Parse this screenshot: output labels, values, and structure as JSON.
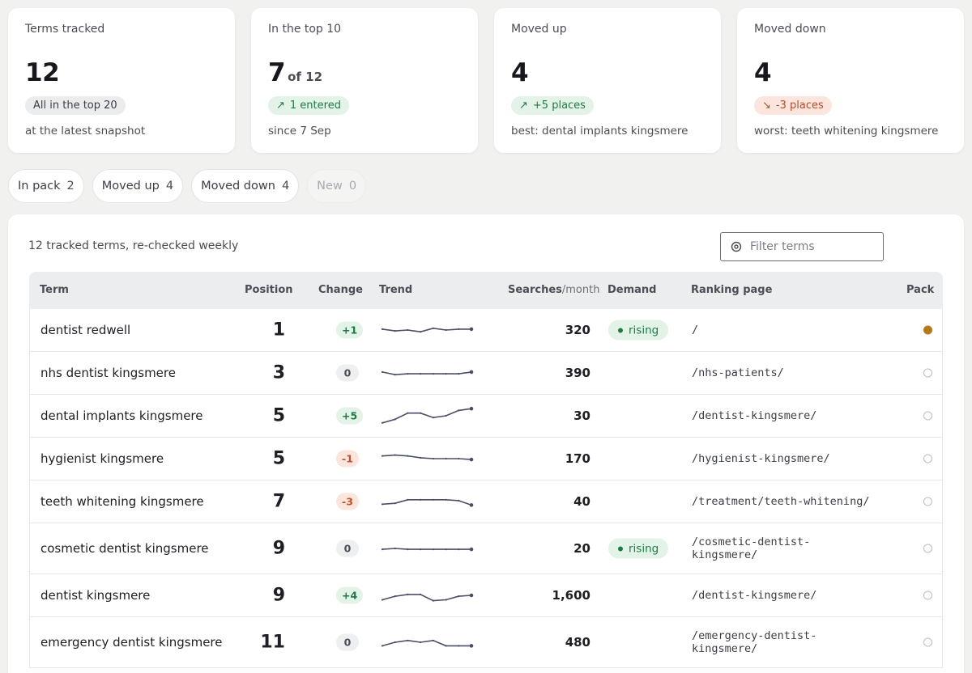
{
  "stats": [
    {
      "label": "Terms tracked",
      "value": "12",
      "suffix": "",
      "badge": "All in the top 20",
      "badge_kind": "neutral",
      "badge_arrow": "",
      "note": "at the latest snapshot"
    },
    {
      "label": "In the top 10",
      "value": "7",
      "suffix": "of 12",
      "badge": "1 entered",
      "badge_kind": "up",
      "badge_arrow": "↗",
      "note": "since 7 Sep"
    },
    {
      "label": "Moved up",
      "value": "4",
      "suffix": "",
      "badge": "+5 places",
      "badge_kind": "up",
      "badge_arrow": "↗",
      "note": "best: dental implants kingsmere"
    },
    {
      "label": "Moved down",
      "value": "4",
      "suffix": "",
      "badge": "-3 places",
      "badge_kind": "down",
      "badge_arrow": "↘",
      "note": "worst: teeth whitening kingsmere"
    }
  ],
  "chips": [
    {
      "label": "In pack",
      "count": "2",
      "disabled": false
    },
    {
      "label": "Moved up",
      "count": "4",
      "disabled": false
    },
    {
      "label": "Moved down",
      "count": "4",
      "disabled": false
    },
    {
      "label": "New",
      "count": "0",
      "disabled": true
    }
  ],
  "panel": {
    "caption": "12 tracked terms, re-checked weekly",
    "filter_placeholder": "Filter terms"
  },
  "columns": {
    "term": "Term",
    "position": "Position",
    "change": "Change",
    "trend": "Trend",
    "searches": "Searches",
    "searches_unit": "/month",
    "demand": "Demand",
    "page": "Ranking page",
    "pack": "Pack"
  },
  "rows": [
    {
      "term": "dentist redwell",
      "position": "1",
      "change": "+1",
      "change_kind": "up",
      "trend": [
        0.45,
        0.55,
        0.5,
        0.6,
        0.4,
        0.5,
        0.45,
        0.45
      ],
      "searches": "320",
      "demand": "rising",
      "page": "/",
      "pack": true
    },
    {
      "term": "nhs dentist kingsmere",
      "position": "3",
      "change": "0",
      "change_kind": "zero",
      "trend": [
        0.45,
        0.6,
        0.55,
        0.55,
        0.55,
        0.55,
        0.55,
        0.45
      ],
      "searches": "390",
      "demand": "",
      "page": "/nhs-patients/",
      "pack": false
    },
    {
      "term": "dental implants kingsmere",
      "position": "5",
      "change": "+5",
      "change_kind": "up",
      "trend": [
        0.9,
        0.7,
        0.35,
        0.35,
        0.6,
        0.5,
        0.2,
        0.1
      ],
      "searches": "30",
      "demand": "",
      "page": "/dentist-kingsmere/",
      "pack": false
    },
    {
      "term": "hygienist kingsmere",
      "position": "5",
      "change": "-1",
      "change_kind": "down",
      "trend": [
        0.35,
        0.3,
        0.35,
        0.45,
        0.5,
        0.5,
        0.5,
        0.55
      ],
      "searches": "170",
      "demand": "",
      "page": "/hygienist-kingsmere/",
      "pack": false
    },
    {
      "term": "teeth whitening kingsmere",
      "position": "7",
      "change": "-3",
      "change_kind": "down",
      "trend": [
        0.65,
        0.6,
        0.4,
        0.4,
        0.4,
        0.4,
        0.45,
        0.7
      ],
      "searches": "40",
      "demand": "",
      "page": "/treatment/teeth-whitening/",
      "pack": false
    },
    {
      "term": "cosmetic dentist kingsmere",
      "position": "9",
      "change": "0",
      "change_kind": "zero",
      "trend": [
        0.55,
        0.5,
        0.55,
        0.55,
        0.55,
        0.55,
        0.55,
        0.55
      ],
      "searches": "20",
      "demand": "rising",
      "page": "/cosmetic-dentist-\nkingsmere/",
      "pack": false
    },
    {
      "term": "dentist kingsmere",
      "position": "9",
      "change": "+4",
      "change_kind": "up",
      "trend": [
        0.75,
        0.55,
        0.45,
        0.45,
        0.8,
        0.75,
        0.55,
        0.5
      ],
      "searches": "1,600",
      "demand": "",
      "page": "/dentist-kingsmere/",
      "pack": false
    },
    {
      "term": "emergency dentist kingsmere",
      "position": "11",
      "change": "0",
      "change_kind": "zero",
      "trend": [
        0.7,
        0.5,
        0.4,
        0.5,
        0.4,
        0.7,
        0.7,
        0.7
      ],
      "searches": "480",
      "demand": "",
      "page": "/emergency-dentist-\nkingsmere/",
      "pack": false
    }
  ]
}
